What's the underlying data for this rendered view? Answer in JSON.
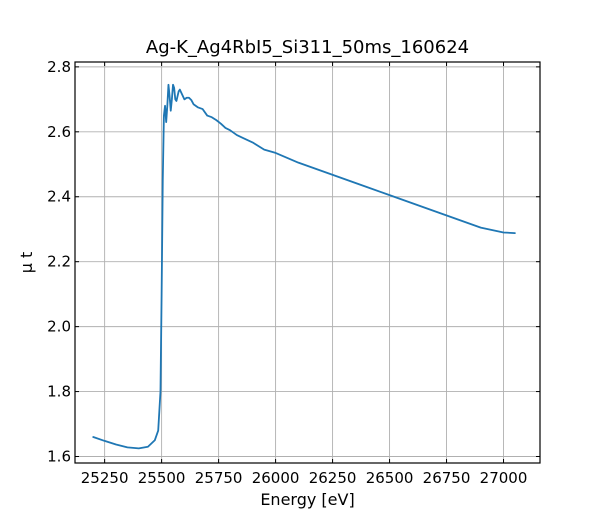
{
  "chart_data": {
    "type": "line",
    "title": "Ag-K_Ag4RbI5_Si311_50ms_160624",
    "xlabel": "Energy [eV]",
    "ylabel": "μ t",
    "xlim": [
      25120,
      27160
    ],
    "ylim": [
      1.58,
      2.815
    ],
    "x_ticks": [
      25250,
      25500,
      25750,
      26000,
      26250,
      26500,
      26750,
      27000
    ],
    "x_tick_labels": [
      "25250",
      "25500",
      "25750",
      "26000",
      "26250",
      "26500",
      "26750",
      "27000"
    ],
    "y_ticks": [
      1.6,
      1.8,
      2.0,
      2.2,
      2.4,
      2.6,
      2.8
    ],
    "y_tick_labels": [
      "1.6",
      "1.8",
      "2.0",
      "2.2",
      "2.4",
      "2.6",
      "2.8"
    ],
    "grid": true,
    "series": [
      {
        "color": "#1f77b4",
        "x": [
          25200,
          25250,
          25300,
          25350,
          25400,
          25440,
          25470,
          25485,
          25495,
          25500,
          25505,
          25510,
          25515,
          25520,
          25525,
          25530,
          25535,
          25540,
          25545,
          25550,
          25555,
          25560,
          25565,
          25570,
          25575,
          25580,
          25590,
          25600,
          25610,
          25620,
          25630,
          25640,
          25660,
          25680,
          25700,
          25720,
          25740,
          25760,
          25780,
          25800,
          25830,
          25860,
          25900,
          25950,
          26000,
          26050,
          26100,
          26200,
          26300,
          26400,
          26500,
          26600,
          26700,
          26800,
          26900,
          27000,
          27050
        ],
        "y": [
          1.66,
          1.648,
          1.637,
          1.628,
          1.625,
          1.63,
          1.65,
          1.68,
          1.8,
          2.1,
          2.45,
          2.65,
          2.68,
          2.63,
          2.68,
          2.745,
          2.71,
          2.665,
          2.7,
          2.745,
          2.735,
          2.7,
          2.695,
          2.71,
          2.725,
          2.73,
          2.715,
          2.7,
          2.705,
          2.705,
          2.698,
          2.685,
          2.675,
          2.67,
          2.65,
          2.645,
          2.636,
          2.625,
          2.612,
          2.605,
          2.59,
          2.58,
          2.567,
          2.545,
          2.535,
          2.52,
          2.505,
          2.48,
          2.455,
          2.43,
          2.405,
          2.38,
          2.355,
          2.33,
          2.305,
          2.29,
          2.288
        ]
      }
    ]
  }
}
